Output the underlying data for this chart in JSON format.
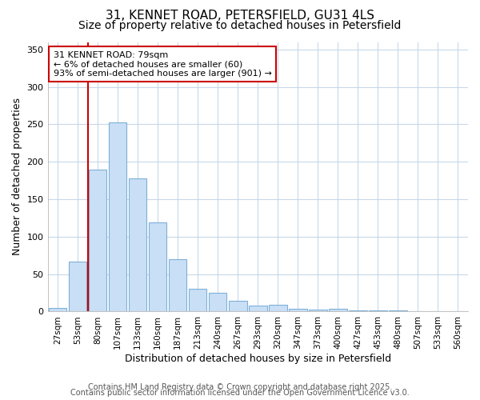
{
  "title_line1": "31, KENNET ROAD, PETERSFIELD, GU31 4LS",
  "title_line2": "Size of property relative to detached houses in Petersfield",
  "xlabel": "Distribution of detached houses by size in Petersfield",
  "ylabel": "Number of detached properties",
  "bins": [
    "27sqm",
    "53sqm",
    "80sqm",
    "107sqm",
    "133sqm",
    "160sqm",
    "187sqm",
    "213sqm",
    "240sqm",
    "267sqm",
    "293sqm",
    "320sqm",
    "347sqm",
    "373sqm",
    "400sqm",
    "427sqm",
    "453sqm",
    "480sqm",
    "507sqm",
    "533sqm",
    "560sqm"
  ],
  "values": [
    5,
    67,
    190,
    253,
    178,
    119,
    70,
    30,
    25,
    14,
    8,
    9,
    4,
    3,
    4,
    2,
    2,
    2,
    1,
    1,
    1
  ],
  "bar_color": "#c9dff5",
  "bar_edge_color": "#7db0d9",
  "highlight_index": 2,
  "highlight_color": "#cc0000",
  "annotation_text": "31 KENNET ROAD: 79sqm\n← 6% of detached houses are smaller (60)\n93% of semi-detached houses are larger (901) →",
  "annotation_box_color": "#ffffff",
  "annotation_box_edge": "#cc0000",
  "ylim": [
    0,
    360
  ],
  "yticks": [
    0,
    50,
    100,
    150,
    200,
    250,
    300,
    350
  ],
  "footer_line1": "Contains HM Land Registry data © Crown copyright and database right 2025.",
  "footer_line2": "Contains public sector information licensed under the Open Government Licence v3.0.",
  "bg_color": "#ffffff",
  "plot_bg_color": "#ffffff",
  "grid_color": "#c8d8e8",
  "title_fontsize": 11,
  "subtitle_fontsize": 10,
  "tick_fontsize": 7.5,
  "label_fontsize": 9,
  "footer_fontsize": 7,
  "annot_fontsize": 8
}
